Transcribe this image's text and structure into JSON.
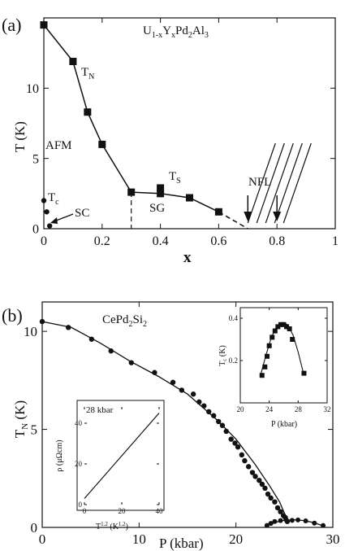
{
  "chart_data": [
    {
      "panel": "(a)",
      "type": "line",
      "title": "U1-xYxPd2Al3",
      "title_main": "U",
      "title_sub1": "1-x",
      "title_mid": "Y",
      "title_sub2": "x",
      "title_tail": "Pd",
      "title_sub3": "2",
      "title_tail2": "Al",
      "title_sub4": "3",
      "xlabel": "x",
      "ylabel": "T (K)",
      "xlim": [
        0,
        1
      ],
      "ylim": [
        0,
        15
      ],
      "xticks": [
        "0",
        "0.2",
        "0.4",
        "0.6",
        "0.8",
        "1"
      ],
      "yticks": [
        "0",
        "5",
        "10"
      ],
      "series": [
        {
          "name": "T_N",
          "x": [
            0.0,
            0.1,
            0.15,
            0.2,
            0.3,
            0.4,
            0.4,
            0.5,
            0.6
          ],
          "y": [
            14.5,
            11.9,
            8.3,
            6.0,
            2.6,
            2.9,
            2.5,
            2.2,
            1.2
          ]
        },
        {
          "name": "T_c",
          "x": [
            0.0,
            0.01,
            0.02
          ],
          "y": [
            2.0,
            1.2,
            0.2
          ]
        }
      ],
      "tn_line": {
        "x": [
          0.0,
          0.1,
          0.15,
          0.2,
          0.3,
          0.4,
          0.5,
          0.6
        ],
        "y": [
          14.5,
          11.9,
          8.3,
          6.0,
          2.6,
          2.5,
          2.2,
          1.2
        ]
      },
      "tn_dash": {
        "x": [
          0.6,
          0.7
        ],
        "y": [
          1.2,
          0.0
        ]
      },
      "annotations": {
        "tn": "T",
        "tn_sub": "N",
        "ts": "T",
        "ts_sub": "S",
        "tc": "T",
        "tc_sub": "c",
        "afm": "AFM",
        "sc": "SC",
        "sg": "SG",
        "nfl": "NFL"
      }
    },
    {
      "panel": "(b)",
      "type": "scatter",
      "title": "CePd2Si2",
      "title_main": "CePd",
      "title_sub1": "2",
      "title_mid": "Si",
      "title_sub2": "2",
      "xlabel": "P (kbar)",
      "ylabel": "T",
      "ylabel_sub": "N",
      "ylabel_tail": " (K)",
      "xlim": [
        0,
        30
      ],
      "ylim": [
        0,
        11.5
      ],
      "xticks": [
        "0",
        "10",
        "20",
        "30"
      ],
      "yticks": [
        "0",
        "5",
        "10"
      ],
      "series": [
        {
          "name": "T_N",
          "x": [
            0,
            2.7,
            5.1,
            7.1,
            9.2,
            11.6,
            13.5,
            14.4,
            15.6,
            16.2,
            16.7,
            17.2,
            17.7,
            18.2,
            18.6,
            19.0,
            19.5,
            19.9,
            20.2,
            20.6,
            20.9,
            21.3,
            21.7,
            22.0,
            22.4,
            22.7,
            23.0,
            23.3,
            23.6,
            24.0,
            24.3,
            24.6,
            24.9,
            25.1,
            25.3
          ],
          "y": [
            10.5,
            10.2,
            9.6,
            9.0,
            8.4,
            7.9,
            7.4,
            7.0,
            6.8,
            6.4,
            6.2,
            5.9,
            5.7,
            5.4,
            5.2,
            4.9,
            4.5,
            4.3,
            4.1,
            3.7,
            3.4,
            3.1,
            2.8,
            2.6,
            2.4,
            2.2,
            2.0,
            1.7,
            1.5,
            1.3,
            1.0,
            0.8,
            0.6,
            0.5,
            0.3
          ]
        },
        {
          "name": "T_c",
          "x": [
            23.2,
            23.6,
            24.0,
            24.6,
            25.2,
            25.8,
            26.4,
            27.2,
            28.1,
            29.0
          ],
          "y": [
            0.1,
            0.2,
            0.3,
            0.35,
            0.38,
            0.36,
            0.38,
            0.33,
            0.22,
            0.1
          ]
        }
      ],
      "fit_curve": {
        "x": [
          0,
          3,
          6,
          9,
          12,
          15,
          18,
          20,
          22,
          23.5,
          24.5,
          25.2
        ],
        "y": [
          10.5,
          10.2,
          9.4,
          8.5,
          7.7,
          6.8,
          5.5,
          4.5,
          3.2,
          2.1,
          1.3,
          0.5
        ]
      },
      "tc_curve": {
        "x": [
          23,
          24,
          25,
          26,
          27,
          28,
          29
        ],
        "y": [
          0.05,
          0.25,
          0.36,
          0.39,
          0.35,
          0.25,
          0.08
        ]
      },
      "insets": [
        {
          "id": "tc-inset",
          "xlabel": "P (kbar)",
          "ylabel": "T",
          "ylabel_sub": "c",
          "ylabel_tail": " (K)",
          "xlim": [
            20,
            32
          ],
          "ylim": [
            0,
            0.45
          ],
          "xticks": [
            "20",
            "24",
            "28",
            "32"
          ],
          "yticks": [
            "0.2",
            "0.4"
          ],
          "points": {
            "x": [
              23.0,
              23.4,
              23.7,
              24.0,
              24.4,
              24.8,
              25.2,
              25.6,
              26.0,
              26.4,
              26.8,
              27.2,
              28.8
            ],
            "y": [
              0.13,
              0.17,
              0.22,
              0.27,
              0.31,
              0.34,
              0.36,
              0.37,
              0.37,
              0.36,
              0.35,
              0.3,
              0.14
            ]
          },
          "curve": {
            "x": [
              22.8,
              23.5,
              24.3,
              25.0,
              25.8,
              26.5,
              27.3,
              28.0,
              28.8
            ],
            "y": [
              0.13,
              0.22,
              0.31,
              0.36,
              0.38,
              0.37,
              0.32,
              0.24,
              0.13
            ]
          }
        },
        {
          "id": "rho-inset",
          "annotation": "28 kbar",
          "xlabel": "T1.2 (K1.2)",
          "xlabel_a": "T",
          "xlabel_sup1": "1.2",
          "xlabel_b": " (K",
          "xlabel_sup2": "1.2",
          "xlabel_c": ")",
          "ylabel": "ρ (μΩcm)",
          "xlim": [
            0,
            40
          ],
          "ylim": [
            0,
            48
          ],
          "xticks": [
            "0",
            "20",
            "40"
          ],
          "yticks": [
            "0",
            "20",
            "40"
          ],
          "line": {
            "x": [
              0,
              40
            ],
            "y": [
              3,
              45
            ]
          }
        }
      ]
    }
  ]
}
